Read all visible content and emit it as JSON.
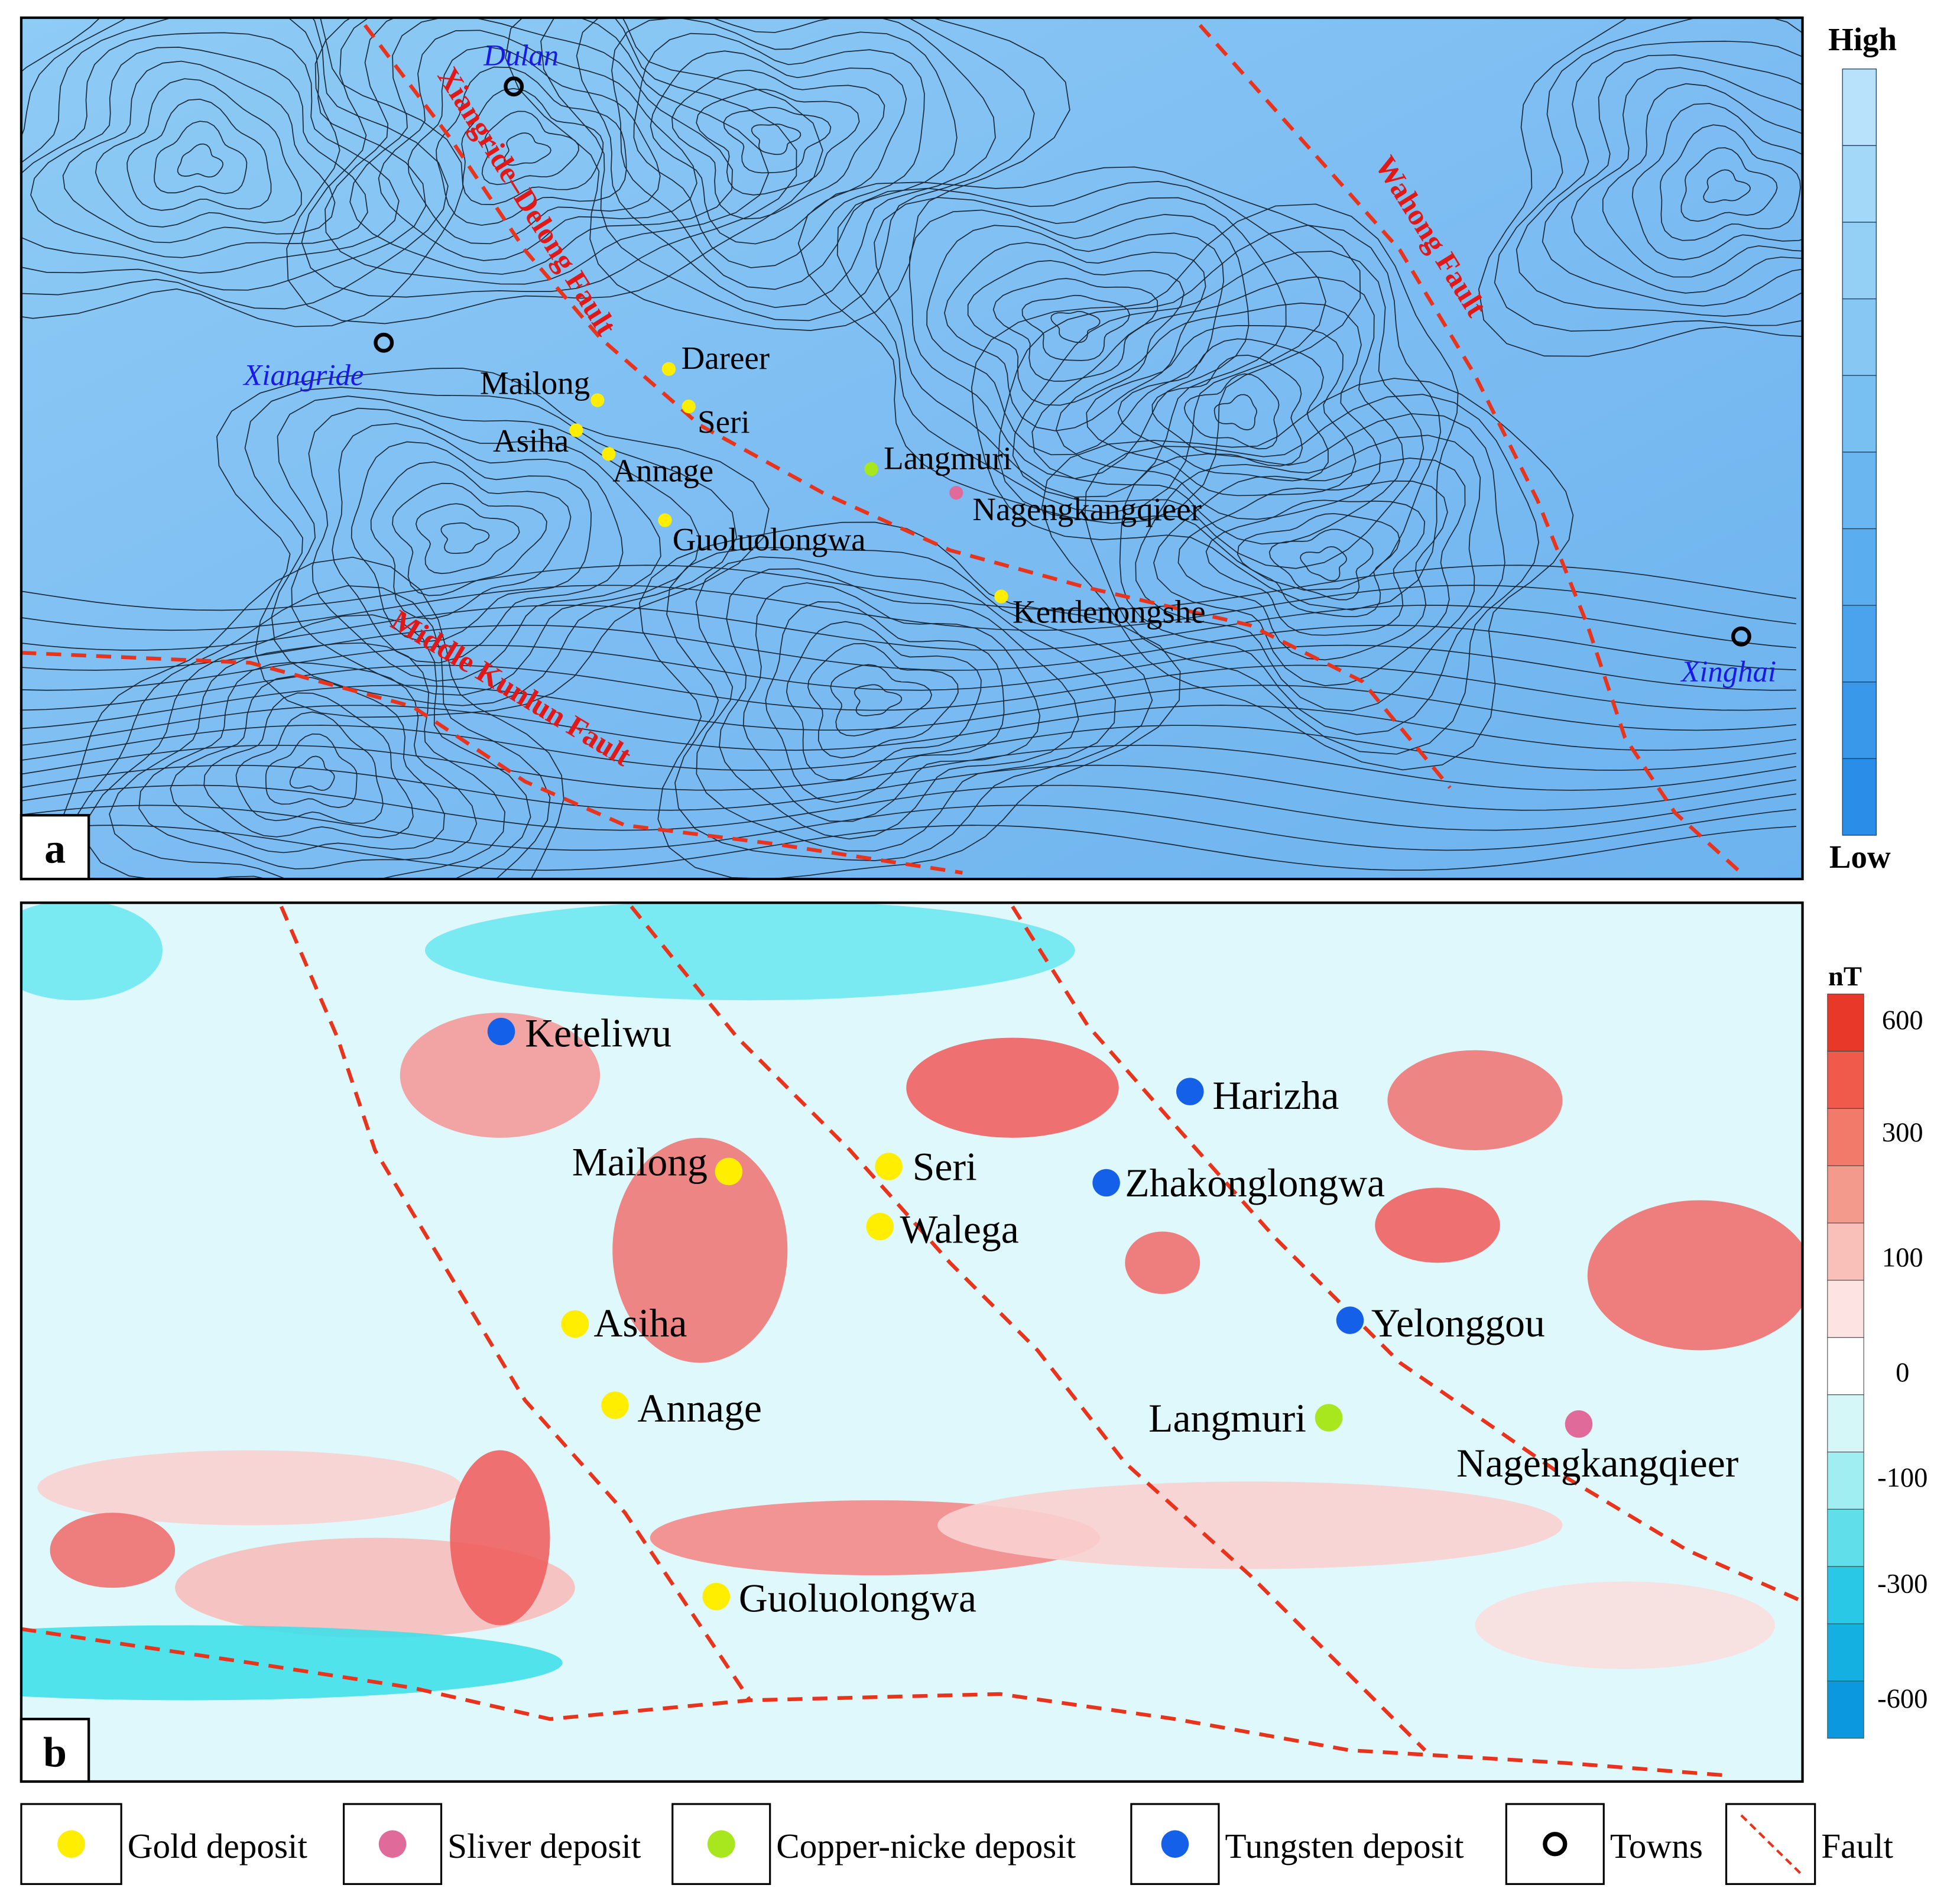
{
  "panel_a": {
    "label": "a",
    "colorbar": {
      "high": "High",
      "low": "Low"
    },
    "towns": [
      {
        "name": "Dulan"
      },
      {
        "name": "Xiangride"
      },
      {
        "name": "Xinghai"
      }
    ],
    "faults": [
      {
        "name": "Xiangride–Delong Fault"
      },
      {
        "name": "Wahong Fault"
      },
      {
        "name": "Middle Kunlun Fault"
      }
    ],
    "deposits": [
      {
        "name": "Dareer",
        "color": "#ffee00"
      },
      {
        "name": "Mailong",
        "color": "#ffee00"
      },
      {
        "name": "Seri",
        "color": "#ffee00"
      },
      {
        "name": "Asiha",
        "color": "#ffee00"
      },
      {
        "name": "Annage",
        "color": "#ffee00"
      },
      {
        "name": "Langmuri",
        "color": "#a8e61d"
      },
      {
        "name": "Nagengkangqieer",
        "color": "#e06b9b"
      },
      {
        "name": "Guoluolongwa",
        "color": "#ffee00"
      },
      {
        "name": "Kendenongshe",
        "color": "#ffee00"
      }
    ]
  },
  "panel_b": {
    "label": "b",
    "colorbar": {
      "unit": "nT",
      "ticks": [
        600,
        300,
        100,
        0,
        -100,
        -300,
        -600
      ]
    },
    "deposits": [
      {
        "name": "Keteliwu",
        "color": "#1560e8"
      },
      {
        "name": "Harizha",
        "color": "#1560e8"
      },
      {
        "name": "Mailong",
        "color": "#ffee00"
      },
      {
        "name": "Seri",
        "color": "#ffee00"
      },
      {
        "name": "Zhakonglongwa",
        "color": "#1560e8"
      },
      {
        "name": "Walega",
        "color": "#ffee00"
      },
      {
        "name": "Asiha",
        "color": "#ffee00"
      },
      {
        "name": "Yelonggou",
        "color": "#1560e8"
      },
      {
        "name": "Annage",
        "color": "#ffee00"
      },
      {
        "name": "Langmuri",
        "color": "#a8e61d"
      },
      {
        "name": "Nagengkangqieer",
        "color": "#e06b9b"
      },
      {
        "name": "Guoluolongwa",
        "color": "#ffee00"
      }
    ]
  },
  "legend": [
    {
      "label": "Gold deposit",
      "color": "#ffee00"
    },
    {
      "label": "Sliver deposit",
      "color": "#e06b9b"
    },
    {
      "label": "Copper-nicke deposit",
      "color": "#a8e61d"
    },
    {
      "label": "Tungsten deposit",
      "color": "#1560e8"
    },
    {
      "label": "Towns"
    },
    {
      "label": "Fault"
    }
  ]
}
